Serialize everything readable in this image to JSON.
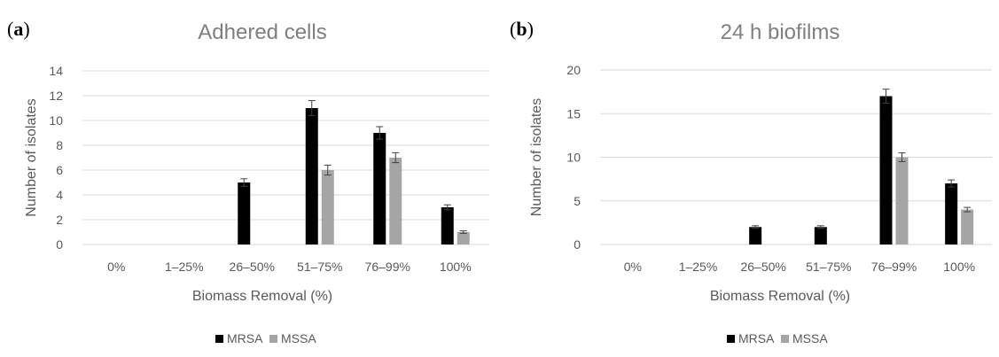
{
  "panels": [
    {
      "label": "a"
    },
    {
      "label": "b"
    }
  ],
  "colors": {
    "MRSA": "#000000",
    "MSSA": "#a5a5a5",
    "grid": "#d9d9d9",
    "errorbar": "#404040"
  },
  "chart_data": [
    {
      "type": "bar",
      "title": "Adhered cells",
      "xlabel": "Biomass Removal (%)",
      "ylabel": "Number of isolates",
      "categories": [
        "0%",
        "1–25%",
        "26–50%",
        "51–75%",
        "76–99%",
        "100%"
      ],
      "ylim": [
        0,
        14
      ],
      "yticks": [
        0,
        2,
        4,
        6,
        8,
        10,
        12,
        14
      ],
      "grid": true,
      "legend": "bottom",
      "series": [
        {
          "name": "MRSA",
          "values": [
            0,
            0,
            5,
            11,
            9,
            3
          ],
          "errors": [
            0,
            0,
            0.3,
            0.6,
            0.5,
            0.2
          ]
        },
        {
          "name": "MSSA",
          "values": [
            0,
            0,
            0,
            6,
            7,
            1
          ],
          "errors": [
            0,
            0,
            0,
            0.4,
            0.4,
            0.1
          ]
        }
      ]
    },
    {
      "type": "bar",
      "title": "24 h biofilms",
      "xlabel": "Biomass Removal (%)",
      "ylabel": "Number of isolates",
      "categories": [
        "0%",
        "1–25%",
        "26–50%",
        "51–75%",
        "76–99%",
        "100%"
      ],
      "ylim": [
        0,
        20
      ],
      "yticks": [
        0,
        5,
        10,
        15,
        20
      ],
      "grid": true,
      "legend": "bottom",
      "series": [
        {
          "name": "MRSA",
          "values": [
            0,
            0,
            2,
            2,
            17,
            7
          ],
          "errors": [
            0,
            0,
            0.15,
            0.15,
            0.8,
            0.4
          ]
        },
        {
          "name": "MSSA",
          "values": [
            0,
            0,
            0,
            0,
            10,
            4
          ],
          "errors": [
            0,
            0,
            0,
            0,
            0.5,
            0.25
          ]
        }
      ]
    }
  ]
}
